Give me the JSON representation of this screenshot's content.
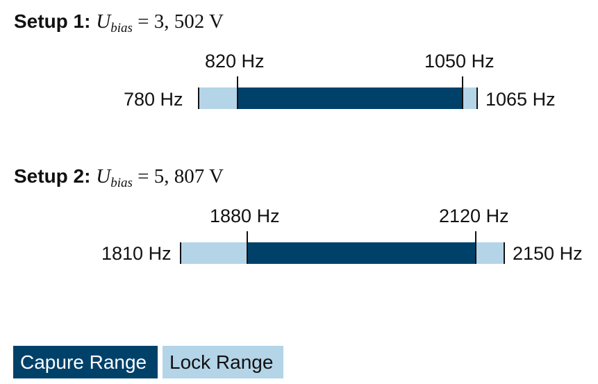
{
  "setups": [
    {
      "label": "Setup 1:",
      "variable": "U",
      "subscript": "bias",
      "equals": "=",
      "value": "3, 502 V",
      "lock_range": {
        "low": "780 Hz",
        "high": "1065 Hz"
      },
      "capture_range": {
        "low": "820 Hz",
        "high": "1050 Hz"
      }
    },
    {
      "label": "Setup 2:",
      "variable": "U",
      "subscript": "bias",
      "equals": "=",
      "value": "5, 807 V",
      "lock_range": {
        "low": "1810 Hz",
        "high": "2150 Hz"
      },
      "capture_range": {
        "low": "1880 Hz",
        "high": "2120 Hz"
      }
    }
  ],
  "legend": {
    "capture_label": "Capure Range",
    "lock_label": "Lock Range"
  },
  "colors": {
    "capture": "#00416a",
    "lock": "#b4d4e8"
  }
}
